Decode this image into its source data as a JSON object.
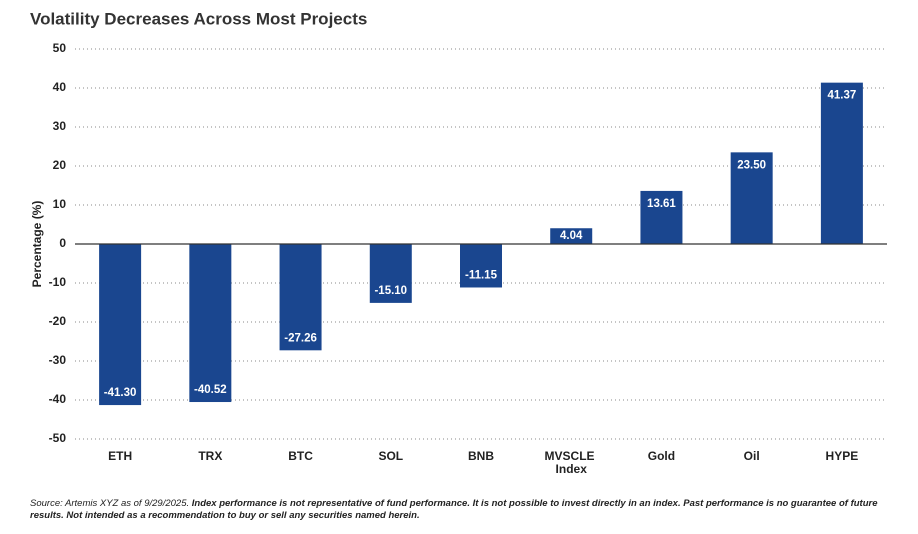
{
  "chart_data": {
    "type": "bar",
    "title": "Volatility Decreases Across Most Projects",
    "y_label": "Percentage (%)",
    "categories": [
      "ETH",
      "TRX",
      "BTC",
      "SOL",
      "BNB",
      "MVSCLE Index",
      "Gold",
      "Oil",
      "HYPE"
    ],
    "values": [
      -41.3,
      -40.52,
      -27.26,
      -15.1,
      -11.15,
      4.04,
      13.61,
      23.5,
      41.37
    ],
    "value_labels": [
      "-41.30",
      "-40.52",
      "-27.26",
      "-15.10",
      "-11.15",
      "4.04",
      "13.61",
      "23.50",
      "41.37"
    ],
    "color": "#1a468f",
    "ylim": [
      -50,
      50
    ],
    "yticks": [
      -50,
      -40,
      -30,
      -20,
      -10,
      0,
      10,
      20,
      30,
      40,
      50
    ],
    "grid": true,
    "source": "Source: Artemis XYZ as of 9/29/2025.",
    "disclaimer": "Index performance is not representative of fund performance. It is not possible to invest directly in an index. Past performance is no guarantee of future results. Not intended as a recommendation to buy or sell any securities named herein."
  }
}
